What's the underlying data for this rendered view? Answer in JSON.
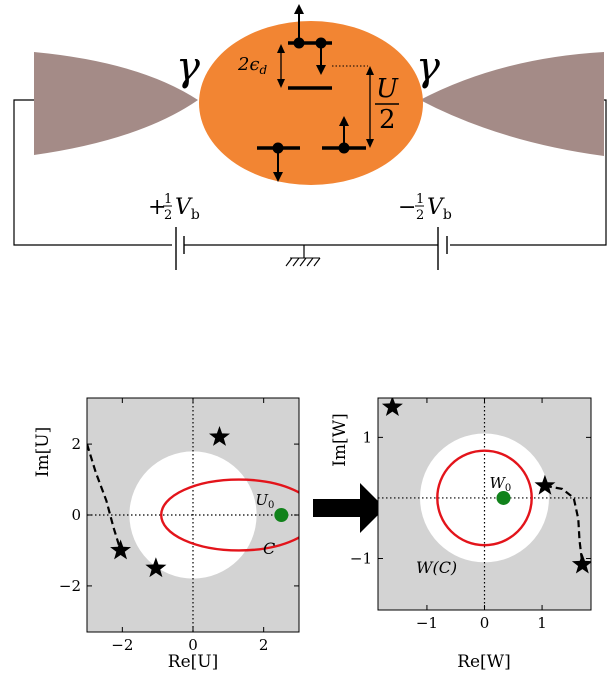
{
  "colors": {
    "dot": "#f28533",
    "lead": "#a48b87",
    "panel_bg": "#d3d3d3",
    "disk": "#ffffff",
    "contour": "#e3141b",
    "point": "#11821b"
  },
  "top": {
    "gamma_left": "γ",
    "gamma_right": "γ",
    "level_label": "2ϵ",
    "level_sub": "d",
    "charge_num": "U",
    "charge_den": "2",
    "bias_left_sign": "+",
    "bias_right_sign": "−",
    "bias_frac_num": "1",
    "bias_frac_den": "2",
    "bias_var": "V",
    "bias_sub": "b"
  },
  "left_panel": {
    "ylabel": "Im[U]",
    "xlabel": "Re[U]",
    "xticks": [
      "−2",
      "0",
      "2"
    ],
    "yticks": [
      "2",
      "0",
      "−2"
    ],
    "point_label": "U",
    "point_sub": "0",
    "contour_label": "C"
  },
  "right_panel": {
    "ylabel": "Im[W]",
    "xlabel": "Re[W]",
    "xticks": [
      "−1",
      "0",
      "1"
    ],
    "yticks": [
      "1",
      "−1"
    ],
    "point_label": "W",
    "point_sub": "0",
    "contour_label": "W(C)"
  },
  "chart_data": [
    {
      "type": "scatter",
      "xlabel": "Re[U]",
      "ylabel": "Im[U]",
      "xlim": [
        -3.0,
        3.0
      ],
      "ylim": [
        -3.3,
        3.3
      ],
      "excluded_disk": {
        "center": [
          0,
          0
        ],
        "radius": 1.8
      },
      "stars": [
        [
          0.75,
          2.2
        ],
        [
          -2.05,
          -1.0
        ],
        [
          -1.05,
          -1.5
        ]
      ],
      "dashed_path": [
        [
          -3.0,
          2.0
        ],
        [
          -2.75,
          1.2
        ],
        [
          -2.45,
          0.4
        ],
        [
          -2.25,
          -0.35
        ],
        [
          -2.05,
          -1.0
        ]
      ],
      "contour_C": {
        "center": [
          1.3,
          0
        ],
        "rx": 2.2,
        "ry": 1.0
      },
      "marker_U0": [
        2.5,
        0
      ]
    },
    {
      "type": "scatter",
      "xlabel": "Re[W]",
      "ylabel": "Im[W]",
      "xlim": [
        -1.85,
        1.85
      ],
      "ylim": [
        -1.85,
        1.65
      ],
      "excluded_disk": {
        "center": [
          0,
          0
        ],
        "radius": 1.12
      },
      "stars": [
        [
          -1.6,
          1.5
        ],
        [
          1.05,
          0.2
        ],
        [
          1.7,
          -1.1
        ]
      ],
      "dashed_path": [
        [
          1.05,
          0.2
        ],
        [
          1.35,
          0.15
        ],
        [
          1.55,
          0.0
        ],
        [
          1.63,
          -0.35
        ],
        [
          1.65,
          -0.7
        ],
        [
          1.7,
          -1.1
        ]
      ],
      "contour_WC": {
        "center": [
          0,
          0
        ],
        "r": 0.82
      },
      "marker_W0": [
        0.33,
        0
      ]
    }
  ]
}
